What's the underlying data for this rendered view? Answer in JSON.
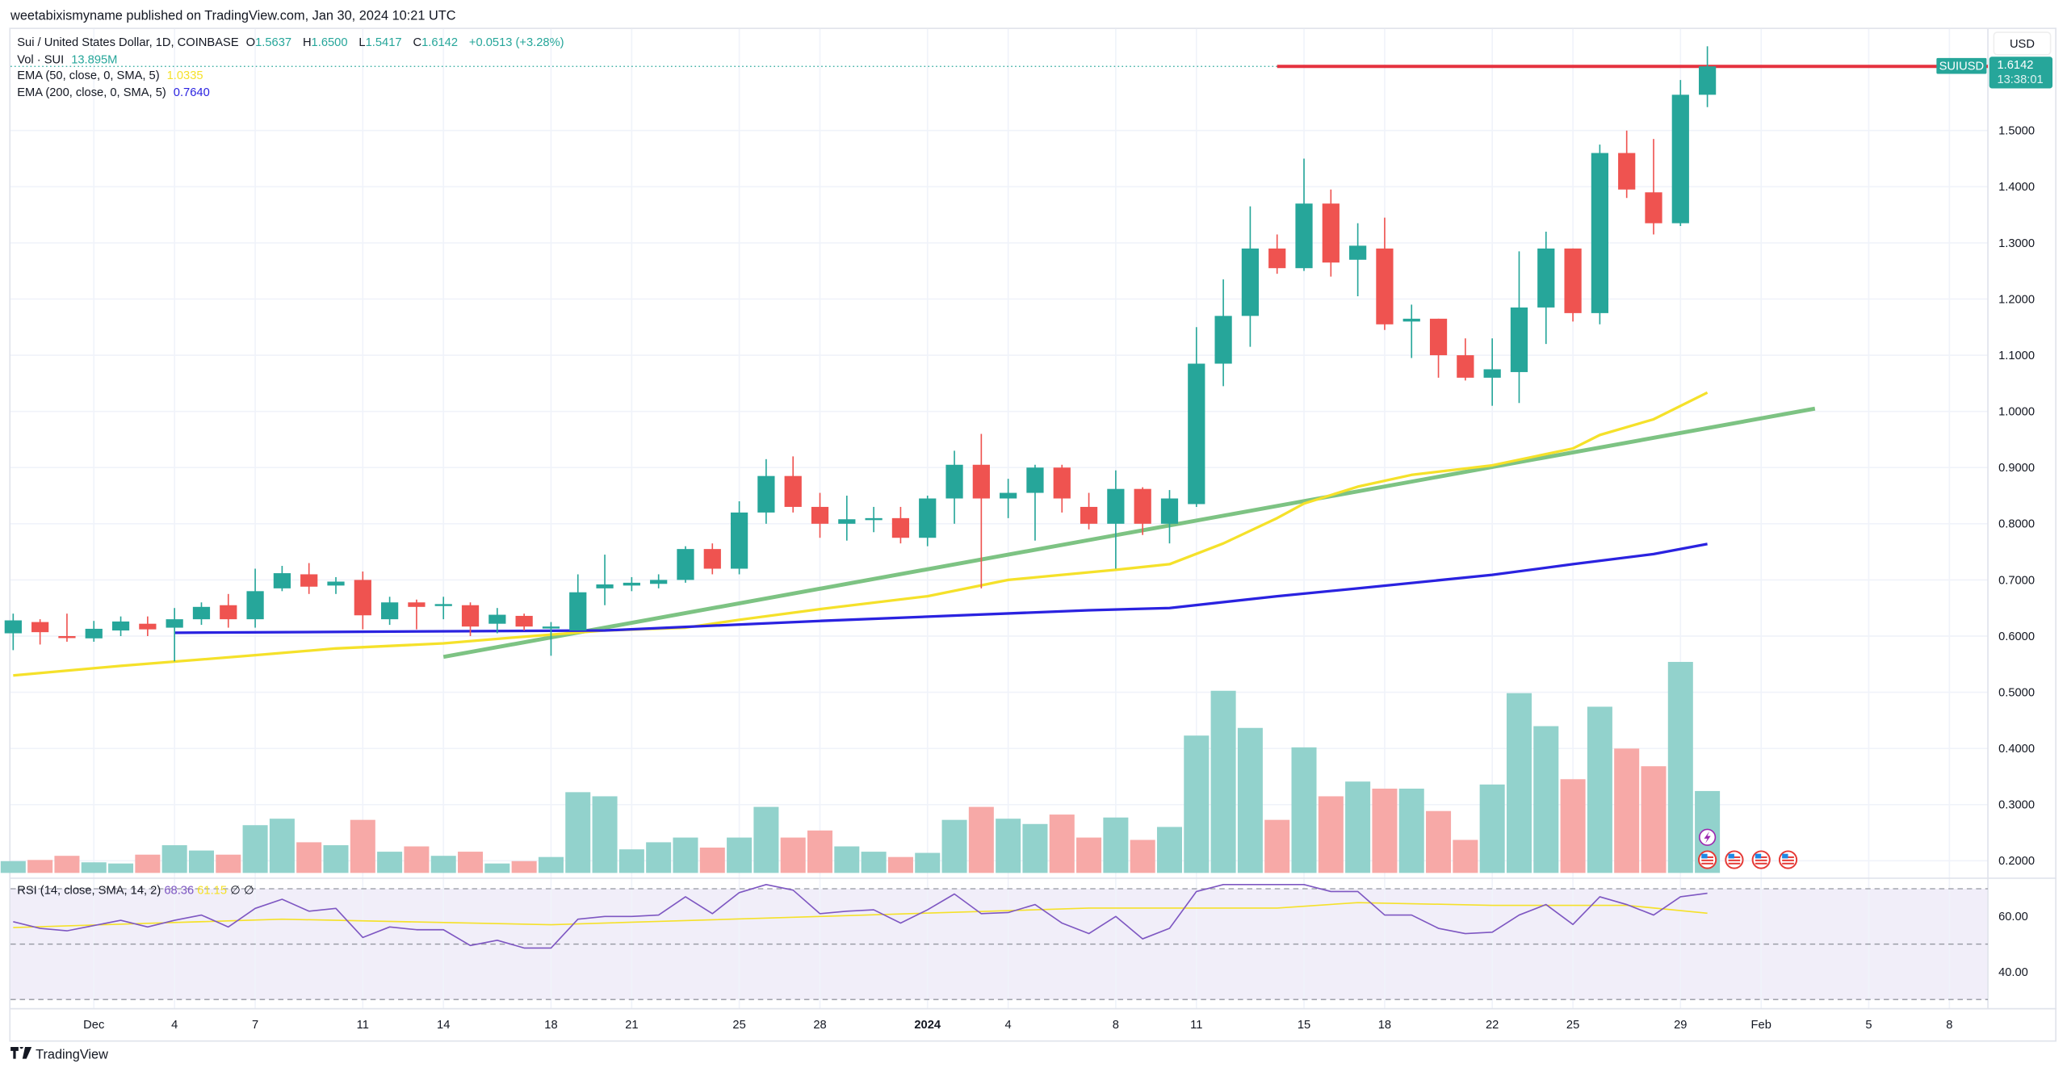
{
  "header": {
    "published": "weetabixismyname published on TradingView.com, Jan 30, 2024 10:21 UTC"
  },
  "legend": {
    "symbol": "Sui / United States Dollar, 1D, COINBASE",
    "o_label": "O",
    "o": "1.5637",
    "h_label": "H",
    "h": "1.6500",
    "l_label": "L",
    "l": "1.5417",
    "c_label": "C",
    "c": "1.6142",
    "change": "+0.0513 (+3.28%)",
    "vol_label": "Vol · SUI",
    "vol": "13.895M",
    "ema50_label": "EMA (50, close, 0, SMA, 5)",
    "ema50": "1.0335",
    "ema200_label": "EMA (200, close, 0, SMA, 5)",
    "ema200": "0.7640"
  },
  "rsi_legend": {
    "label": "RSI (14, close, SMA, 14, 2)",
    "rsi": "68.36",
    "ma": "61.15",
    "icons": "∅ ∅"
  },
  "price_axis": {
    "currency": "USD",
    "symbol_tag": "SUIUSD",
    "last_price": "1.6142",
    "countdown": "13:38:01",
    "ticks": [
      "1.5000",
      "1.4000",
      "1.3000",
      "1.2000",
      "1.1000",
      "1.0000",
      "0.9000",
      "0.8000",
      "0.7000",
      "0.6000",
      "0.5000",
      "0.4000",
      "0.3000",
      "0.2000"
    ]
  },
  "rsi_axis": {
    "ticks": [
      "60.00",
      "40.00"
    ]
  },
  "time_axis": [
    {
      "date": "2023-12-01",
      "label": "Dec"
    },
    {
      "date": "2023-12-04",
      "label": "4"
    },
    {
      "date": "2023-12-07",
      "label": "7"
    },
    {
      "date": "2023-12-11",
      "label": "11"
    },
    {
      "date": "2023-12-14",
      "label": "14"
    },
    {
      "date": "2023-12-18",
      "label": "18"
    },
    {
      "date": "2023-12-21",
      "label": "21"
    },
    {
      "date": "2023-12-25",
      "label": "25"
    },
    {
      "date": "2023-12-28",
      "label": "28"
    },
    {
      "date": "2024-01-01",
      "label": "2024",
      "bold": true
    },
    {
      "date": "2024-01-04",
      "label": "4"
    },
    {
      "date": "2024-01-08",
      "label": "8"
    },
    {
      "date": "2024-01-11",
      "label": "11"
    },
    {
      "date": "2024-01-15",
      "label": "15"
    },
    {
      "date": "2024-01-18",
      "label": "18"
    },
    {
      "date": "2024-01-22",
      "label": "22"
    },
    {
      "date": "2024-01-25",
      "label": "25"
    },
    {
      "date": "2024-01-29",
      "label": "29"
    },
    {
      "date": "2024-02-01",
      "label": "Feb"
    },
    {
      "date": "2024-02-05",
      "label": "5"
    },
    {
      "date": "2024-02-08",
      "label": "8"
    }
  ],
  "footer": {
    "brand": "TradingView",
    "logo": "17"
  },
  "colors": {
    "up": "#26a69a",
    "down": "#ef5350",
    "vol_up": "#92d2cc",
    "vol_down": "#f7a9a7",
    "ema50": "#f5e12a",
    "ema200": "#2a22e0",
    "trendline": "#7dc383",
    "hline": "#e5323f",
    "rsi": "#7e57c2",
    "rsi_ma": "#f5e12a",
    "rsi_bg": "#f1eef9"
  },
  "chart_data": {
    "type": "candlestick",
    "ylim": [
      0.18,
      1.66
    ],
    "columns": [
      "date",
      "open",
      "high",
      "low",
      "close",
      "volume_M"
    ],
    "candles": [
      [
        "2023-11-28",
        0.605,
        0.64,
        0.575,
        0.628,
        2.0
      ],
      [
        "2023-11-29",
        0.625,
        0.63,
        0.585,
        0.607,
        2.2
      ],
      [
        "2023-11-30",
        0.6,
        0.64,
        0.59,
        0.598,
        2.9
      ],
      [
        "2023-12-01",
        0.596,
        0.627,
        0.59,
        0.613,
        1.8
      ],
      [
        "2023-12-02",
        0.61,
        0.635,
        0.6,
        0.626,
        1.6
      ],
      [
        "2023-12-03",
        0.622,
        0.635,
        0.6,
        0.612,
        3.1
      ],
      [
        "2023-12-04",
        0.615,
        0.65,
        0.555,
        0.63,
        4.7
      ],
      [
        "2023-12-05",
        0.63,
        0.66,
        0.62,
        0.652,
        3.8
      ],
      [
        "2023-12-06",
        0.655,
        0.675,
        0.615,
        0.63,
        3.1
      ],
      [
        "2023-12-07",
        0.63,
        0.72,
        0.615,
        0.68,
        8.1
      ],
      [
        "2023-12-08",
        0.685,
        0.725,
        0.68,
        0.712,
        9.2
      ],
      [
        "2023-12-09",
        0.71,
        0.73,
        0.675,
        0.688,
        5.2
      ],
      [
        "2023-12-10",
        0.69,
        0.705,
        0.675,
        0.697,
        4.7
      ],
      [
        "2023-12-11",
        0.7,
        0.715,
        0.612,
        0.637,
        9.0
      ],
      [
        "2023-12-12",
        0.63,
        0.67,
        0.62,
        0.66,
        3.6
      ],
      [
        "2023-12-13",
        0.66,
        0.665,
        0.612,
        0.652,
        4.5
      ],
      [
        "2023-12-14",
        0.655,
        0.67,
        0.63,
        0.657,
        2.9
      ],
      [
        "2023-12-15",
        0.655,
        0.66,
        0.6,
        0.617,
        3.6
      ],
      [
        "2023-12-16",
        0.622,
        0.65,
        0.605,
        0.638,
        1.6
      ],
      [
        "2023-12-17",
        0.636,
        0.64,
        0.61,
        0.617,
        2.0
      ],
      [
        "2023-12-18",
        0.615,
        0.625,
        0.565,
        0.617,
        2.7
      ],
      [
        "2023-12-19",
        0.61,
        0.71,
        0.61,
        0.678,
        13.7
      ],
      [
        "2023-12-20",
        0.685,
        0.745,
        0.655,
        0.692,
        13.0
      ],
      [
        "2023-12-21",
        0.69,
        0.705,
        0.68,
        0.695,
        4.0
      ],
      [
        "2023-12-22",
        0.693,
        0.71,
        0.685,
        0.7,
        5.2
      ],
      [
        "2023-12-23",
        0.7,
        0.76,
        0.695,
        0.755,
        6.0
      ],
      [
        "2023-12-24",
        0.755,
        0.765,
        0.71,
        0.72,
        4.3
      ],
      [
        "2023-12-25",
        0.72,
        0.84,
        0.71,
        0.82,
        6.0
      ],
      [
        "2023-12-26",
        0.82,
        0.915,
        0.8,
        0.885,
        11.2
      ],
      [
        "2023-12-27",
        0.885,
        0.92,
        0.82,
        0.83,
        6.0
      ],
      [
        "2023-12-28",
        0.83,
        0.855,
        0.775,
        0.8,
        7.2
      ],
      [
        "2023-12-29",
        0.8,
        0.85,
        0.77,
        0.808,
        4.5
      ],
      [
        "2023-12-30",
        0.807,
        0.83,
        0.785,
        0.81,
        3.6
      ],
      [
        "2023-12-31",
        0.81,
        0.83,
        0.765,
        0.775,
        2.7
      ],
      [
        "2024-01-01",
        0.775,
        0.85,
        0.76,
        0.845,
        3.4
      ],
      [
        "2024-01-02",
        0.845,
        0.93,
        0.8,
        0.905,
        9.0
      ],
      [
        "2024-01-03",
        0.905,
        0.96,
        0.685,
        0.845,
        11.2
      ],
      [
        "2024-01-04",
        0.845,
        0.88,
        0.81,
        0.855,
        9.2
      ],
      [
        "2024-01-05",
        0.855,
        0.905,
        0.77,
        0.9,
        8.3
      ],
      [
        "2024-01-06",
        0.9,
        0.905,
        0.82,
        0.845,
        9.9
      ],
      [
        "2024-01-07",
        0.83,
        0.855,
        0.79,
        0.8,
        6.0
      ],
      [
        "2024-01-08",
        0.8,
        0.895,
        0.72,
        0.862,
        9.4
      ],
      [
        "2024-01-09",
        0.862,
        0.865,
        0.78,
        0.8,
        5.6
      ],
      [
        "2024-01-10",
        0.8,
        0.86,
        0.765,
        0.845,
        7.8
      ],
      [
        "2024-01-11",
        0.835,
        1.15,
        0.83,
        1.085,
        23.3
      ],
      [
        "2024-01-12",
        1.085,
        1.235,
        1.045,
        1.17,
        30.9
      ],
      [
        "2024-01-13",
        1.17,
        1.365,
        1.115,
        1.29,
        24.6
      ],
      [
        "2024-01-14",
        1.29,
        1.315,
        1.245,
        1.255,
        9.0
      ],
      [
        "2024-01-15",
        1.255,
        1.45,
        1.25,
        1.37,
        21.3
      ],
      [
        "2024-01-16",
        1.37,
        1.395,
        1.24,
        1.265,
        13.0
      ],
      [
        "2024-01-17",
        1.27,
        1.335,
        1.205,
        1.295,
        15.5
      ],
      [
        "2024-01-18",
        1.29,
        1.345,
        1.145,
        1.155,
        14.3
      ],
      [
        "2024-01-19",
        1.16,
        1.19,
        1.095,
        1.165,
        14.3
      ],
      [
        "2024-01-20",
        1.165,
        1.165,
        1.06,
        1.1,
        10.5
      ],
      [
        "2024-01-21",
        1.1,
        1.13,
        1.055,
        1.06,
        5.6
      ],
      [
        "2024-01-22",
        1.06,
        1.13,
        1.01,
        1.075,
        15.0
      ],
      [
        "2024-01-23",
        1.07,
        1.285,
        1.015,
        1.185,
        30.5
      ],
      [
        "2024-01-24",
        1.185,
        1.32,
        1.12,
        1.29,
        24.9
      ],
      [
        "2024-01-25",
        1.29,
        1.29,
        1.16,
        1.175,
        15.9
      ],
      [
        "2024-01-26",
        1.175,
        1.475,
        1.155,
        1.46,
        28.2
      ],
      [
        "2024-01-27",
        1.46,
        1.5,
        1.38,
        1.395,
        21.1
      ],
      [
        "2024-01-28",
        1.39,
        1.485,
        1.315,
        1.335,
        18.1
      ],
      [
        "2024-01-29",
        1.335,
        1.59,
        1.33,
        1.5637,
        35.8
      ],
      [
        "2024-01-30",
        1.5637,
        1.65,
        1.5417,
        1.6142,
        13.895
      ]
    ],
    "ema50": [
      [
        "2023-11-28",
        0.53
      ],
      [
        "2023-12-02",
        0.547
      ],
      [
        "2023-12-07",
        0.566
      ],
      [
        "2023-12-10",
        0.578
      ],
      [
        "2023-12-14",
        0.587
      ],
      [
        "2023-12-17",
        0.599
      ],
      [
        "2023-12-20",
        0.61
      ],
      [
        "2023-12-23",
        0.615
      ],
      [
        "2023-12-25",
        0.629
      ],
      [
        "2023-12-28",
        0.648
      ],
      [
        "2024-01-01",
        0.671
      ],
      [
        "2024-01-04",
        0.7
      ],
      [
        "2024-01-06",
        0.709
      ],
      [
        "2024-01-08",
        0.718
      ],
      [
        "2024-01-10",
        0.728
      ],
      [
        "2024-01-12",
        0.765
      ],
      [
        "2024-01-14",
        0.81
      ],
      [
        "2024-01-15",
        0.836
      ],
      [
        "2024-01-17",
        0.866
      ],
      [
        "2024-01-19",
        0.887
      ],
      [
        "2024-01-22",
        0.904
      ],
      [
        "2024-01-25",
        0.934
      ],
      [
        "2024-01-26",
        0.958
      ],
      [
        "2024-01-28",
        0.986
      ],
      [
        "2024-01-30",
        1.0335
      ]
    ],
    "ema200": [
      [
        "2023-12-04",
        0.606
      ],
      [
        "2023-12-20",
        0.61
      ],
      [
        "2023-12-28",
        0.627
      ],
      [
        "2024-01-07",
        0.646
      ],
      [
        "2024-01-10",
        0.65
      ],
      [
        "2024-01-14",
        0.671
      ],
      [
        "2024-01-17",
        0.685
      ],
      [
        "2024-01-22",
        0.709
      ],
      [
        "2024-01-25",
        0.728
      ],
      [
        "2024-01-28",
        0.746
      ],
      [
        "2024-01-30",
        0.764
      ]
    ],
    "trendline": [
      [
        "2023-12-14",
        0.563
      ],
      [
        "2024-02-03",
        1.005
      ]
    ],
    "horizontal_line": {
      "from": "2024-01-14",
      "price": 1.6142
    },
    "rsi": {
      "ylim": [
        25,
        75
      ],
      "levels": [
        70,
        50,
        30
      ],
      "values": [
        58.1,
        55.7,
        54.8,
        56.7,
        58.6,
        56.2,
        58.6,
        60.5,
        56.2,
        62.9,
        66.2,
        61.9,
        62.9,
        52.4,
        56.2,
        55.2,
        55.2,
        49.5,
        51.4,
        48.6,
        48.6,
        59.0,
        60.0,
        60.0,
        60.5,
        67.1,
        61.0,
        68.6,
        73.3,
        69.5,
        61.0,
        61.9,
        62.4,
        57.6,
        62.4,
        68.1,
        61.0,
        61.4,
        64.3,
        57.6,
        53.8,
        60.0,
        51.9,
        55.7,
        69.0,
        71.9,
        75.7,
        73.8,
        76.2,
        69.0,
        69.0,
        60.5,
        60.5,
        55.7,
        53.8,
        54.3,
        60.5,
        64.3,
        57.1,
        67.1,
        64.3,
        60.5,
        67.1,
        68.36
      ],
      "ma": [
        [
          "2023-11-28",
          56
        ],
        [
          "2023-12-08",
          59
        ],
        [
          "2023-12-18",
          57
        ],
        [
          "2023-12-28",
          60
        ],
        [
          "2024-01-07",
          63
        ],
        [
          "2024-01-14",
          63
        ],
        [
          "2024-01-17",
          65
        ],
        [
          "2024-01-22",
          64
        ],
        [
          "2024-01-27",
          64
        ],
        [
          "2024-01-30",
          61.15
        ]
      ]
    },
    "events": {
      "lightning": [
        "2024-01-30"
      ],
      "us_flag": [
        "2024-01-30",
        "2024-01-31",
        "2024-02-01",
        "2024-02-02"
      ]
    }
  }
}
